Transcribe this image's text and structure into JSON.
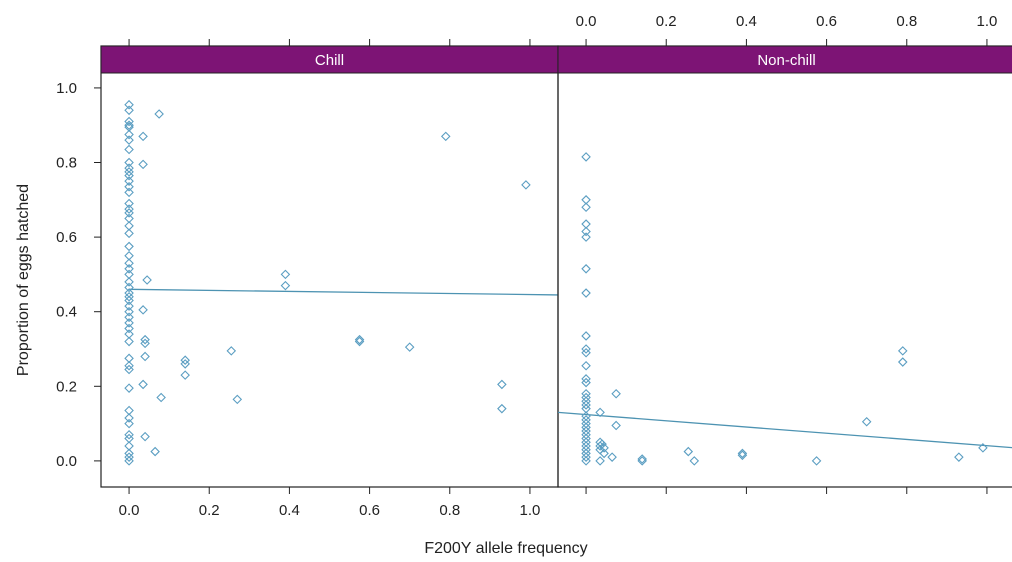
{
  "chart_data": {
    "type": "scatter",
    "ylabel": "Proportion of eggs hatched",
    "xlabel": "F200Y allele frequency",
    "xlim": [
      -0.07,
      1.07
    ],
    "ylim": [
      -0.07,
      1.04
    ],
    "x_ticks": [
      "0.0",
      "0.2",
      "0.4",
      "0.6",
      "0.8",
      "1.0"
    ],
    "y_ticks": [
      "0.0",
      "0.2",
      "0.4",
      "0.6",
      "0.8",
      "1.0"
    ],
    "strip_color": "#7d1475",
    "point_color": "#5b9ec2",
    "line_color": "#4d93b2",
    "panels": [
      {
        "name": "Chill",
        "x_axis_position": "bottom",
        "trend": [
          [
            0.0,
            0.46
          ],
          [
            1.07,
            0.445
          ]
        ],
        "points": [
          [
            0,
            0.955
          ],
          [
            0,
            0.94
          ],
          [
            0,
            0.91
          ],
          [
            0,
            0.9
          ],
          [
            0,
            0.895
          ],
          [
            0,
            0.875
          ],
          [
            0,
            0.86
          ],
          [
            0,
            0.835
          ],
          [
            0,
            0.8
          ],
          [
            0,
            0.785
          ],
          [
            0,
            0.775
          ],
          [
            0,
            0.765
          ],
          [
            0,
            0.75
          ],
          [
            0,
            0.735
          ],
          [
            0,
            0.72
          ],
          [
            0,
            0.69
          ],
          [
            0,
            0.675
          ],
          [
            0,
            0.665
          ],
          [
            0,
            0.65
          ],
          [
            0,
            0.63
          ],
          [
            0,
            0.61
          ],
          [
            0,
            0.575
          ],
          [
            0,
            0.55
          ],
          [
            0,
            0.53
          ],
          [
            0,
            0.515
          ],
          [
            0,
            0.5
          ],
          [
            0,
            0.48
          ],
          [
            0,
            0.465
          ],
          [
            0,
            0.45
          ],
          [
            0,
            0.44
          ],
          [
            0,
            0.43
          ],
          [
            0,
            0.415
          ],
          [
            0,
            0.4
          ],
          [
            0,
            0.385
          ],
          [
            0,
            0.37
          ],
          [
            0,
            0.355
          ],
          [
            0,
            0.34
          ],
          [
            0,
            0.32
          ],
          [
            0,
            0.275
          ],
          [
            0,
            0.255
          ],
          [
            0,
            0.245
          ],
          [
            0,
            0.195
          ],
          [
            0,
            0.135
          ],
          [
            0,
            0.115
          ],
          [
            0,
            0.1
          ],
          [
            0,
            0.07
          ],
          [
            0,
            0.06
          ],
          [
            0,
            0.04
          ],
          [
            0,
            0.02
          ],
          [
            0,
            0.01
          ],
          [
            0,
            0.0
          ],
          [
            0.035,
            0.87
          ],
          [
            0.035,
            0.795
          ],
          [
            0.045,
            0.485
          ],
          [
            0.035,
            0.405
          ],
          [
            0.04,
            0.325
          ],
          [
            0.04,
            0.315
          ],
          [
            0.04,
            0.28
          ],
          [
            0.035,
            0.205
          ],
          [
            0.04,
            0.065
          ],
          [
            0.065,
            0.025
          ],
          [
            0.075,
            0.93
          ],
          [
            0.08,
            0.17
          ],
          [
            0.14,
            0.27
          ],
          [
            0.14,
            0.26
          ],
          [
            0.14,
            0.23
          ],
          [
            0.255,
            0.295
          ],
          [
            0.27,
            0.165
          ],
          [
            0.39,
            0.5
          ],
          [
            0.39,
            0.47
          ],
          [
            0.575,
            0.325
          ],
          [
            0.575,
            0.32
          ],
          [
            0.7,
            0.305
          ],
          [
            0.79,
            0.87
          ],
          [
            0.93,
            0.205
          ],
          [
            0.93,
            0.14
          ],
          [
            0.99,
            0.74
          ]
        ]
      },
      {
        "name": "Non-chill",
        "x_axis_position": "top",
        "trend": [
          [
            -0.07,
            0.13
          ],
          [
            1.07,
            0.035
          ]
        ],
        "points": [
          [
            0,
            0.815
          ],
          [
            0,
            0.7
          ],
          [
            0,
            0.68
          ],
          [
            0,
            0.635
          ],
          [
            0,
            0.615
          ],
          [
            0,
            0.6
          ],
          [
            0,
            0.515
          ],
          [
            0,
            0.45
          ],
          [
            0,
            0.335
          ],
          [
            0,
            0.3
          ],
          [
            0,
            0.29
          ],
          [
            0,
            0.255
          ],
          [
            0,
            0.22
          ],
          [
            0,
            0.21
          ],
          [
            0,
            0.18
          ],
          [
            0,
            0.17
          ],
          [
            0,
            0.16
          ],
          [
            0,
            0.15
          ],
          [
            0,
            0.14
          ],
          [
            0,
            0.12
          ],
          [
            0,
            0.11
          ],
          [
            0,
            0.1
          ],
          [
            0,
            0.09
          ],
          [
            0,
            0.08
          ],
          [
            0,
            0.07
          ],
          [
            0,
            0.06
          ],
          [
            0,
            0.05
          ],
          [
            0,
            0.04
          ],
          [
            0,
            0.03
          ],
          [
            0,
            0.02
          ],
          [
            0,
            0.01
          ],
          [
            0,
            0.0
          ],
          [
            0.035,
            0.13
          ],
          [
            0.035,
            0.05
          ],
          [
            0.035,
            0.04
          ],
          [
            0.035,
            0.03
          ],
          [
            0.035,
            0.0
          ],
          [
            0.04,
            0.045
          ],
          [
            0.045,
            0.035
          ],
          [
            0.045,
            0.02
          ],
          [
            0.065,
            0.01
          ],
          [
            0.075,
            0.18
          ],
          [
            0.075,
            0.095
          ],
          [
            0.14,
            0.005
          ],
          [
            0.14,
            0.0
          ],
          [
            0.255,
            0.025
          ],
          [
            0.27,
            0.0
          ],
          [
            0.39,
            0.02
          ],
          [
            0.39,
            0.015
          ],
          [
            0.575,
            0.0
          ],
          [
            0.7,
            0.105
          ],
          [
            0.79,
            0.295
          ],
          [
            0.79,
            0.265
          ],
          [
            0.93,
            0.01
          ],
          [
            0.99,
            0.035
          ]
        ]
      }
    ]
  }
}
